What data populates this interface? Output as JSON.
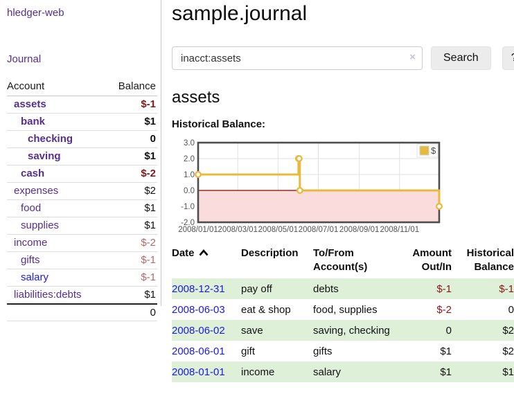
{
  "app": {
    "title": "hledger-web",
    "nav_journal": "Journal"
  },
  "sidebar": {
    "table_headers": {
      "account": "Account",
      "balance": "Balance"
    },
    "accounts": [
      {
        "name": "assets",
        "balance": "$-1",
        "level": 1,
        "bold": true,
        "link": "purple",
        "balance_neg": "strong"
      },
      {
        "name": "bank",
        "balance": "$1",
        "level": 2,
        "bold": true,
        "link": "purple",
        "balance_neg": "none"
      },
      {
        "name": "checking",
        "balance": "0",
        "level": 3,
        "bold": true,
        "link": "purple",
        "balance_neg": "none"
      },
      {
        "name": "saving",
        "balance": "$1",
        "level": 3,
        "bold": true,
        "link": "purple",
        "balance_neg": "none"
      },
      {
        "name": "cash",
        "balance": "$-2",
        "level": 2,
        "bold": true,
        "link": "purple",
        "balance_neg": "strong"
      },
      {
        "name": "expenses",
        "balance": "$2",
        "level": 1,
        "bold": false,
        "link": "purple",
        "balance_neg": "none"
      },
      {
        "name": "food",
        "balance": "$1",
        "level": 2,
        "bold": false,
        "link": "purple",
        "balance_neg": "none"
      },
      {
        "name": "supplies",
        "balance": "$1",
        "level": 2,
        "bold": false,
        "link": "purple",
        "balance_neg": "none"
      },
      {
        "name": "income",
        "balance": "$-2",
        "level": 1,
        "bold": false,
        "link": "purple",
        "balance_neg": "soft"
      },
      {
        "name": "gifts",
        "balance": "$-1",
        "level": 2,
        "bold": false,
        "link": "purple",
        "balance_neg": "soft"
      },
      {
        "name": "salary",
        "balance": "$-1",
        "level": 2,
        "bold": false,
        "link": "blue",
        "balance_neg": "soft"
      },
      {
        "name": "liabilities:debts",
        "balance": "$1",
        "level": 1,
        "bold": false,
        "link": "purple",
        "balance_neg": "none"
      }
    ],
    "total": "0"
  },
  "header": {
    "title": "sample.journal"
  },
  "search": {
    "value": "inacct:assets",
    "clear_icon": "×",
    "button": "Search",
    "help_button": "?"
  },
  "account_page": {
    "title": "assets",
    "chart_label": "Historical Balance:"
  },
  "chart_data": {
    "type": "line",
    "subtype": "step-after",
    "title": "Historical Balance",
    "xlabel": "",
    "ylabel": "",
    "xlim": [
      "2008-01-01",
      "2008-12-31"
    ],
    "ylim": [
      -2.0,
      3.0
    ],
    "yticks": [
      3.0,
      2.0,
      1.0,
      0.0,
      -1.0,
      -2.0
    ],
    "ytick_labels": [
      "3.0",
      "2.0",
      "1.0",
      "0.0",
      "-1.0",
      "-2.0"
    ],
    "xticks": [
      "2008-01-01",
      "2008-03-01",
      "2008-05-01",
      "2008-07-01",
      "2008-09-01",
      "2008-11-01"
    ],
    "xtick_labels": [
      "2008/01/01",
      "2008/03/01",
      "2008/05/01",
      "2008/07/01",
      "2008/09/01",
      "2008/11/01"
    ],
    "grid": true,
    "legend_position": "top-right",
    "negative_region_shaded": true,
    "series": [
      {
        "name": "$",
        "points": [
          {
            "x": "2008-01-01",
            "y": 1
          },
          {
            "x": "2008-06-01",
            "y": 2
          },
          {
            "x": "2008-06-02",
            "y": 2
          },
          {
            "x": "2008-06-03",
            "y": 0
          },
          {
            "x": "2008-12-31",
            "y": -1
          }
        ]
      }
    ]
  },
  "register": {
    "columns": [
      {
        "label": "Date",
        "align": "left",
        "sorted": "asc"
      },
      {
        "label": "Description",
        "align": "left"
      },
      {
        "label": "To/From Account(s)",
        "align": "left"
      },
      {
        "label": "Amount Out/In",
        "align": "right"
      },
      {
        "label": "Historical Balance",
        "align": "right"
      }
    ],
    "rows": [
      {
        "date": "2008-12-31",
        "description": "pay off",
        "accounts": "debts",
        "amount": "$-1",
        "amount_neg": true,
        "balance": "$-1",
        "balance_neg": true,
        "shade": "green"
      },
      {
        "date": "2008-06-03",
        "description": "eat & shop",
        "accounts": "food, supplies",
        "amount": "$-2",
        "amount_neg": true,
        "balance": "0",
        "balance_neg": false,
        "shade": "white"
      },
      {
        "date": "2008-06-02",
        "description": "save",
        "accounts": "saving, checking",
        "amount": "0",
        "amount_neg": false,
        "balance": "$2",
        "balance_neg": false,
        "shade": "green"
      },
      {
        "date": "2008-06-01",
        "description": "gift",
        "accounts": "gifts",
        "amount": "$1",
        "amount_neg": false,
        "balance": "$2",
        "balance_neg": false,
        "shade": "white"
      },
      {
        "date": "2008-01-01",
        "description": "income",
        "accounts": "salary",
        "amount": "$1",
        "amount_neg": false,
        "balance": "$1",
        "balance_neg": false,
        "shade": "green"
      }
    ]
  },
  "colors": {
    "link_purple": "#552e91",
    "link_blue": "#1a1ae0",
    "negative_strong": "#8b1616",
    "negative_soft": "#b66a6a",
    "row_green": "#dff0d8",
    "chart_line_gold": "#e6ba3c",
    "chart_negative_fill": "#fbdcdc",
    "chart_zero_line": "#8b0000",
    "chart_border": "#4d4d4d"
  }
}
